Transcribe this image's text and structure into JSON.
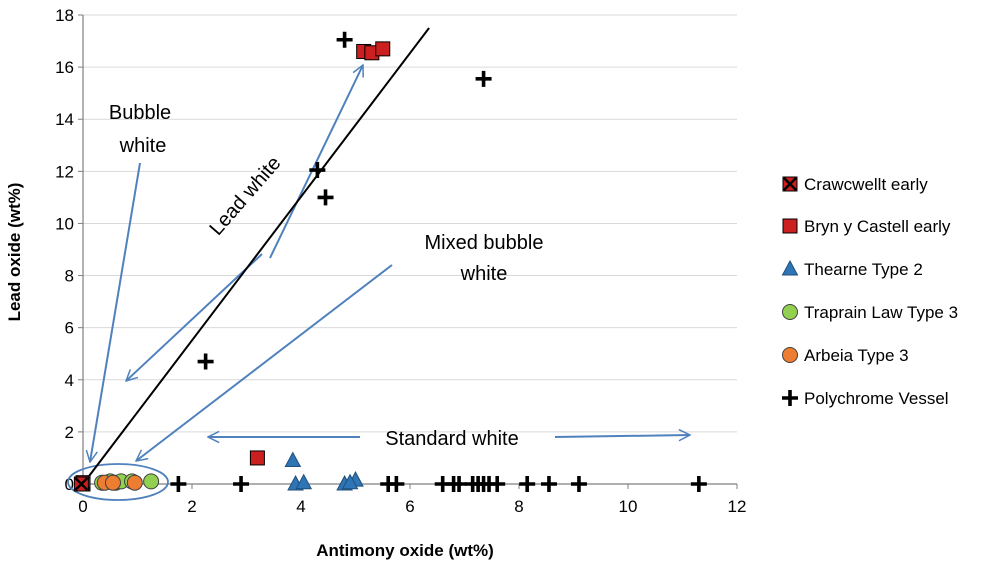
{
  "chart_data": {
    "type": "scatter",
    "title": "",
    "xlabel": "Antimony oxide (wt%)",
    "ylabel": "Lead oxide (wt%)",
    "xlim": [
      0,
      12
    ],
    "ylim": [
      0,
      18
    ],
    "xticks": [
      0,
      2,
      4,
      6,
      8,
      10,
      12
    ],
    "yticks": [
      0,
      2,
      4,
      6,
      8,
      10,
      12,
      14,
      16,
      18
    ],
    "grid": "horizontal",
    "legend_position": "right",
    "series": [
      {
        "name": "Crawcwellt early",
        "marker": "square-x",
        "color": "#cc1f1f",
        "points": [
          [
            0.0,
            0.0
          ],
          [
            0.0,
            0.05
          ],
          [
            -0.03,
            0.0
          ]
        ]
      },
      {
        "name": "Bryn y Castell early",
        "marker": "square",
        "color": "#cc1f1f",
        "points": [
          [
            5.15,
            16.6
          ],
          [
            5.3,
            16.55
          ],
          [
            5.5,
            16.7
          ],
          [
            3.2,
            1.0
          ]
        ]
      },
      {
        "name": "Thearne Type 2",
        "marker": "triangle",
        "color": "#2e75b6",
        "points": [
          [
            3.85,
            0.9
          ],
          [
            3.9,
            0.0
          ],
          [
            4.05,
            0.05
          ],
          [
            4.8,
            0.0
          ],
          [
            5.0,
            0.15
          ],
          [
            4.9,
            0.05
          ]
        ]
      },
      {
        "name": "Traprain Law Type 3",
        "marker": "circle",
        "color": "#92d050",
        "points": [
          [
            0.35,
            0.05
          ],
          [
            0.5,
            0.1
          ],
          [
            0.6,
            0.05
          ],
          [
            0.7,
            0.1
          ],
          [
            0.9,
            0.1
          ],
          [
            1.25,
            0.1
          ]
        ]
      },
      {
        "name": "Arbeia Type 3",
        "marker": "circle",
        "color": "#ed7d31",
        "points": [
          [
            0.4,
            0.05
          ],
          [
            0.55,
            0.05
          ],
          [
            0.95,
            0.05
          ]
        ]
      },
      {
        "name": "Polychrome Vessel",
        "marker": "plus",
        "color": "#000000",
        "points": [
          [
            4.8,
            17.05
          ],
          [
            7.35,
            15.55
          ],
          [
            4.3,
            12.05
          ],
          [
            4.45,
            11.0
          ],
          [
            2.25,
            4.7
          ],
          [
            1.75,
            0.0
          ],
          [
            2.9,
            0.0
          ],
          [
            5.6,
            0.0
          ],
          [
            5.75,
            0.0
          ],
          [
            6.6,
            0.0
          ],
          [
            6.8,
            0.0
          ],
          [
            6.9,
            0.0
          ],
          [
            7.15,
            0.0
          ],
          [
            7.25,
            0.0
          ],
          [
            7.35,
            0.0
          ],
          [
            7.45,
            0.0
          ],
          [
            7.6,
            0.0
          ],
          [
            8.15,
            0.0
          ],
          [
            8.55,
            0.0
          ],
          [
            9.1,
            0.0
          ],
          [
            11.3,
            0.0
          ]
        ]
      }
    ],
    "reference_line": {
      "from": [
        0,
        0
      ],
      "to": [
        6.35,
        17.5
      ],
      "color": "#000000"
    },
    "annotations": {
      "bubble_white": [
        "Bubble",
        "white"
      ],
      "lead_white": "Lead white",
      "mixed_bubble_white": [
        "Mixed bubble",
        "white"
      ],
      "standard_white": "Standard white"
    },
    "arrow_color": "#4f81bd"
  }
}
